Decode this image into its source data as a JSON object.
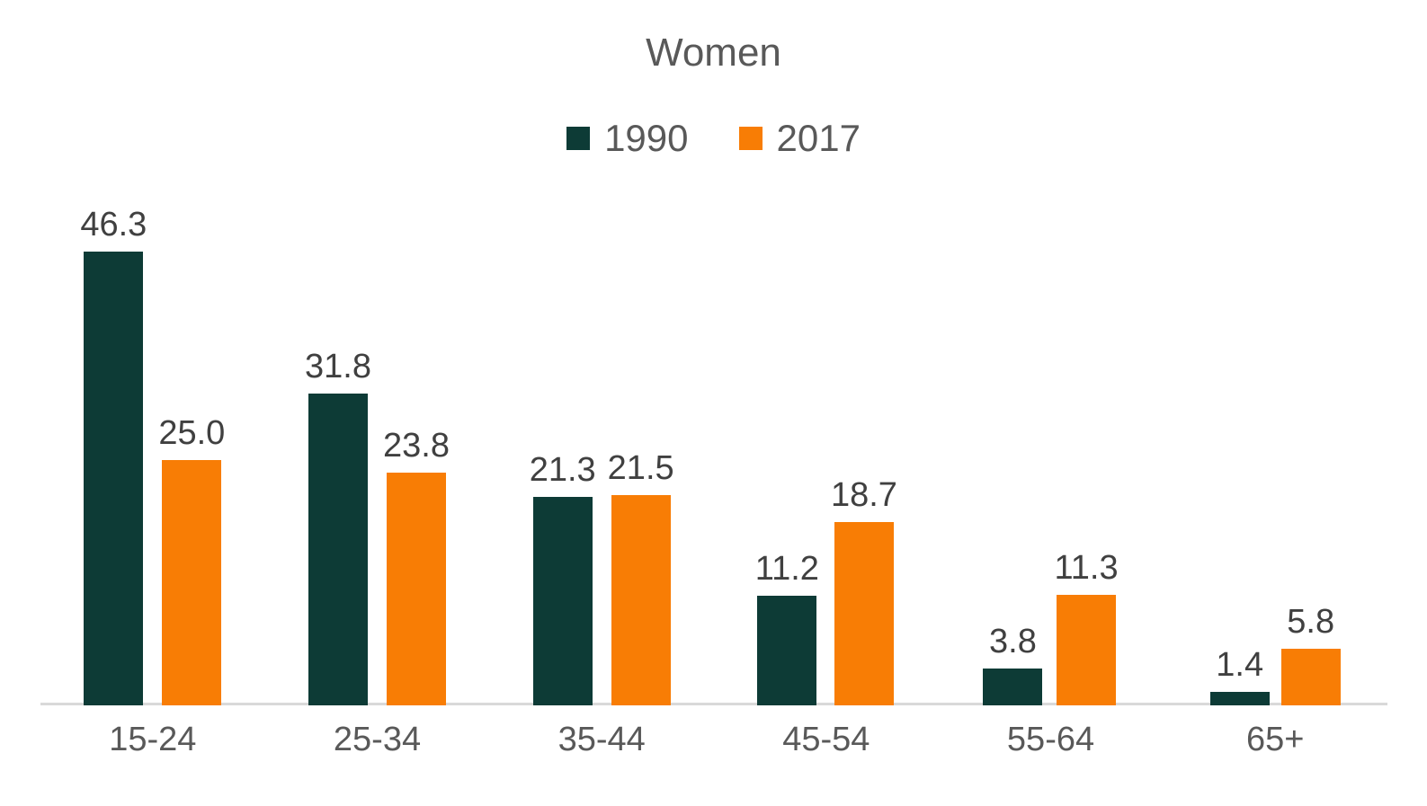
{
  "chart_data": {
    "type": "bar",
    "title": "Women",
    "categories": [
      "15-24",
      "25-34",
      "35-44",
      "45-54",
      "55-64",
      "65+"
    ],
    "series": [
      {
        "name": "1990",
        "color": "#0d3b36",
        "values": [
          46.3,
          31.8,
          21.3,
          11.2,
          3.8,
          1.4
        ]
      },
      {
        "name": "2017",
        "color": "#f87d05",
        "values": [
          25.0,
          23.8,
          21.5,
          18.7,
          11.3,
          5.8
        ]
      }
    ],
    "ylim": [
      0,
      50
    ],
    "grid": false,
    "legend_position": "top",
    "data_labels": true,
    "value_decimals": 1
  },
  "colors": {
    "title_text": "#595959",
    "value_label_text": "#404040",
    "category_text": "#595959",
    "axis_line": "#d9d9d9",
    "background": "#ffffff"
  }
}
